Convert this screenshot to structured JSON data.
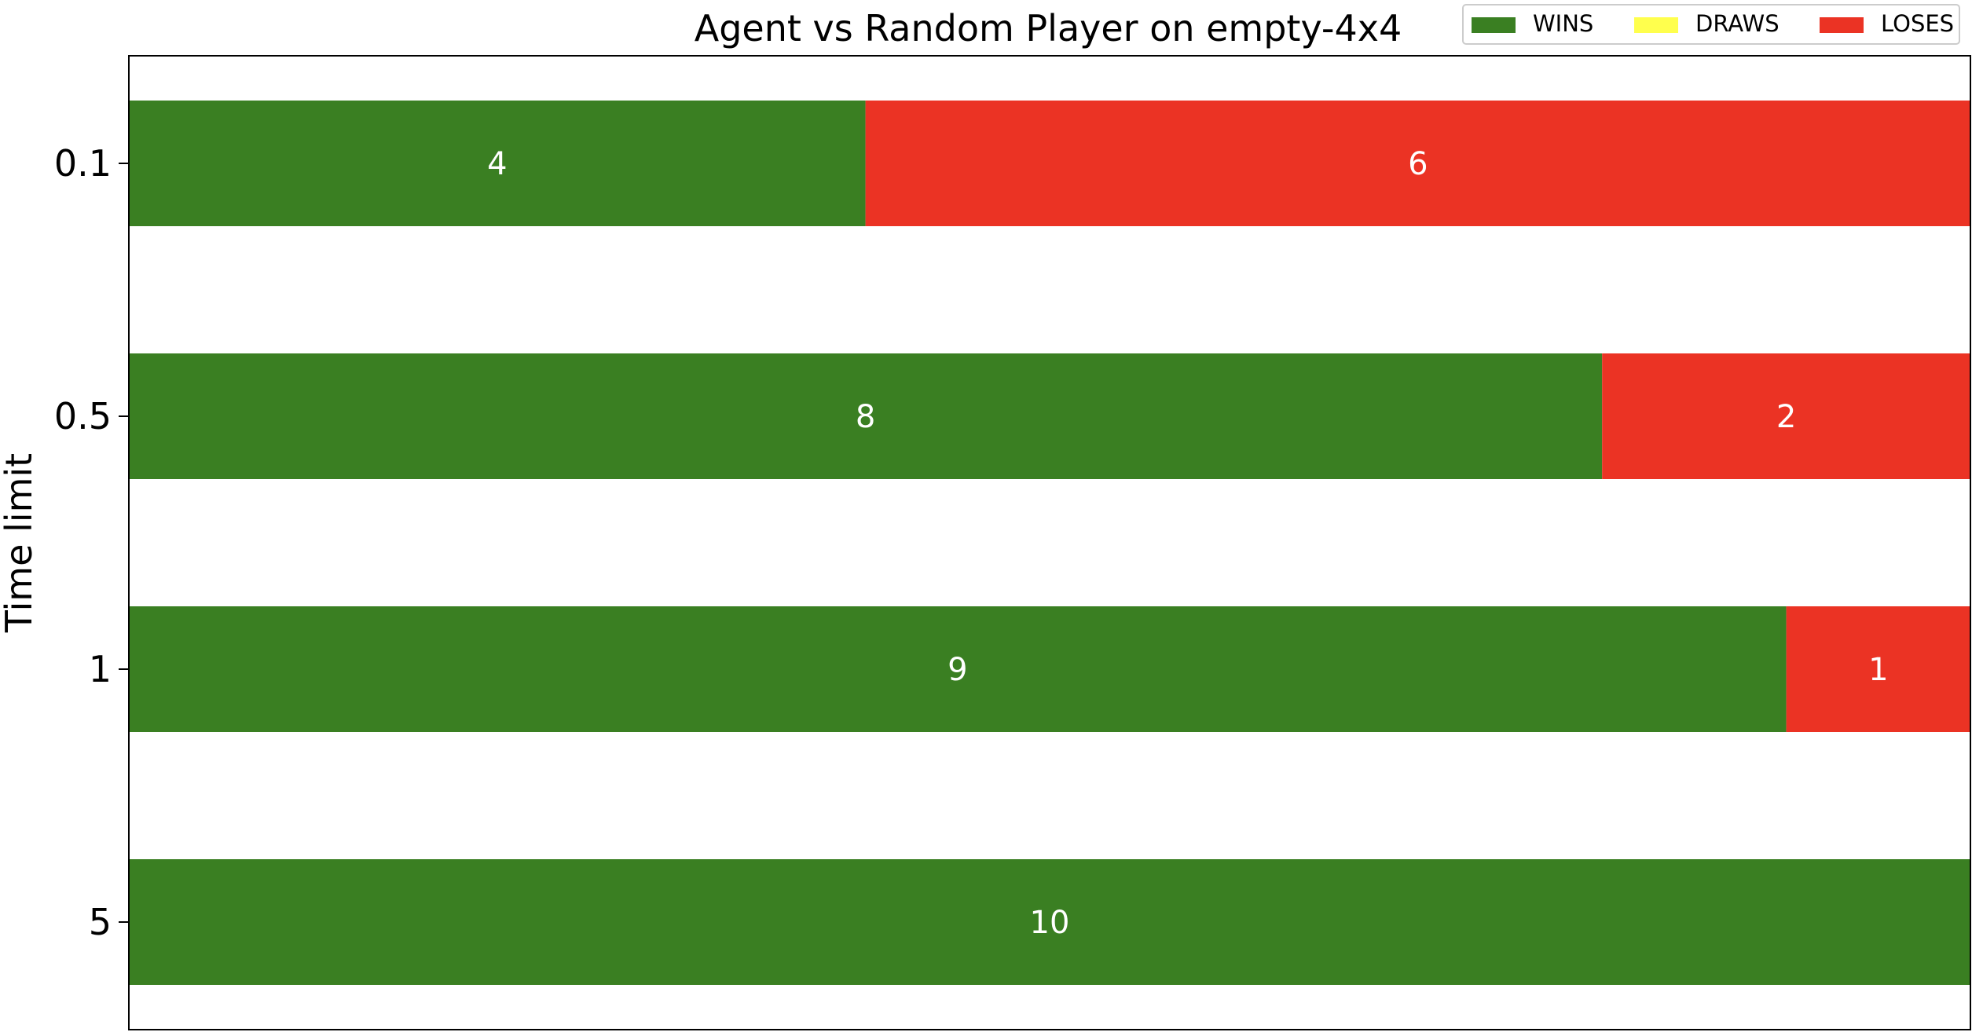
{
  "chart_data": {
    "type": "bar",
    "orientation": "horizontal",
    "stacked": true,
    "title": "Agent vs Random Player on empty-4x4",
    "xlabel": "",
    "ylabel": "Time limit",
    "categories": [
      "0.1",
      "0.5",
      "1",
      "5"
    ],
    "series": [
      {
        "name": "WINS",
        "values": [
          4,
          8,
          9,
          10
        ],
        "color": "#3a7f22"
      },
      {
        "name": "DRAWS",
        "values": [
          0,
          0,
          0,
          0
        ],
        "color": "#ffff4d"
      },
      {
        "name": "LOSES",
        "values": [
          6,
          2,
          1,
          0
        ],
        "color": "#eb3324"
      }
    ],
    "xlim": [
      0,
      10
    ],
    "grid": false,
    "legend": {
      "placement": "top-right",
      "columns": 3
    }
  }
}
